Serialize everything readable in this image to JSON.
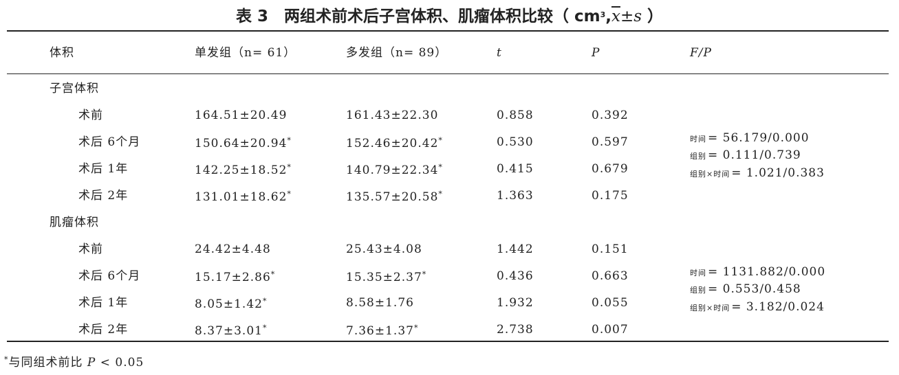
{
  "title": {
    "number": "表 3",
    "text": "两组术前术后子宫体积、肌瘤体积比较（ cm",
    "sup": "3",
    "sep": ",",
    "xbar": "x",
    "pm": "±",
    "s": "s",
    "close": " ）"
  },
  "table": {
    "header": [
      "体积",
      "单发组（n= 61）",
      "多发组（n= 89）",
      "t",
      "P",
      "F/P"
    ],
    "groups": [
      {
        "label": "子宫体积",
        "rows": [
          {
            "label": "术前",
            "cells": [
              "164.51±20.49",
              "161.43±22.30",
              "0.858",
              "0.392"
            ]
          },
          {
            "label": "术后 6个月",
            "cells": [
              {
                "text": "150.64±20.94",
                "sup": "*"
              },
              {
                "text": "152.46±20.42",
                "sup": "*"
              },
              "0.530",
              "0.597"
            ]
          },
          {
            "label": "术后 1年",
            "cells": [
              {
                "text": "142.25±18.52",
                "sup": "*"
              },
              {
                "text": "140.79±22.34",
                "sup": "*"
              },
              "0.415",
              "0.679"
            ]
          },
          {
            "label": "术后 2年",
            "cells": [
              {
                "text": "131.01±18.62",
                "sup": "*"
              },
              {
                "text": "135.57±20.58",
                "sup": "*"
              },
              "1.363",
              "0.175"
            ]
          }
        ],
        "fp": [
          {
            "sub": "时间",
            "text": "= 56.179/0.000"
          },
          {
            "sub": "组别",
            "text": "= 0.111/0.739"
          },
          {
            "sub": "组别×时间",
            "text": "= 1.021/0.383"
          }
        ]
      },
      {
        "label": "肌瘤体积",
        "rows": [
          {
            "label": "术前",
            "cells": [
              "24.42±4.48",
              "25.43±4.08",
              "1.442",
              "0.151"
            ]
          },
          {
            "label": "术后 6个月",
            "cells": [
              {
                "text": "15.17±2.86",
                "sup": "*"
              },
              {
                "text": "15.35±2.37",
                "sup": "*"
              },
              "0.436",
              "0.663"
            ]
          },
          {
            "label": "术后 1年",
            "cells": [
              {
                "text": "8.05±1.42",
                "sup": "*"
              },
              "8.58±1.76",
              "1.932",
              "0.055"
            ]
          },
          {
            "label": "术后 2年",
            "cells": [
              {
                "text": "8.37±3.01",
                "sup": "*"
              },
              {
                "text": "7.36±1.37",
                "sup": "*"
              },
              "2.738",
              "0.007"
            ]
          }
        ],
        "fp": [
          {
            "sub": "时间",
            "text": "= 1131.882/0.000"
          },
          {
            "sub": "组别",
            "text": "= 0.553/0.458"
          },
          {
            "sub": "组别×时间",
            "text": "= 3.182/0.024"
          }
        ]
      }
    ]
  },
  "footnote": {
    "sup": "*",
    "text": "与同组术前比 ",
    "italic": "P",
    "rest": " < 0.05"
  }
}
